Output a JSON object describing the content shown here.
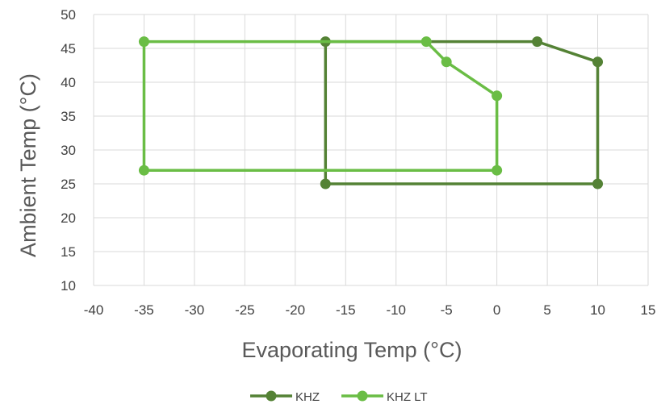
{
  "chart_data": {
    "type": "scatter",
    "xlabel": "Evaporating Temp (°C)",
    "ylabel": "Ambient Temp (°C)",
    "xlim": [
      -40,
      15
    ],
    "ylim": [
      10,
      50
    ],
    "xticks": [
      -40,
      -35,
      -30,
      -25,
      -20,
      -15,
      -10,
      -5,
      0,
      5,
      10,
      15
    ],
    "yticks": [
      10,
      15,
      20,
      25,
      30,
      35,
      40,
      45,
      50
    ],
    "grid": true,
    "legend_position": "bottom",
    "series": [
      {
        "name": "KHZ",
        "color": "#548235",
        "points": [
          [
            -17,
            46
          ],
          [
            4,
            46
          ],
          [
            10,
            43
          ],
          [
            10,
            25
          ],
          [
            -17,
            25
          ],
          [
            -17,
            46
          ]
        ]
      },
      {
        "name": "KHZ LT",
        "color": "#6ABD45",
        "points": [
          [
            -35,
            46
          ],
          [
            -7,
            46
          ],
          [
            -5,
            43
          ],
          [
            0,
            38
          ],
          [
            0,
            27
          ],
          [
            -35,
            27
          ],
          [
            -35,
            46
          ]
        ]
      }
    ]
  }
}
